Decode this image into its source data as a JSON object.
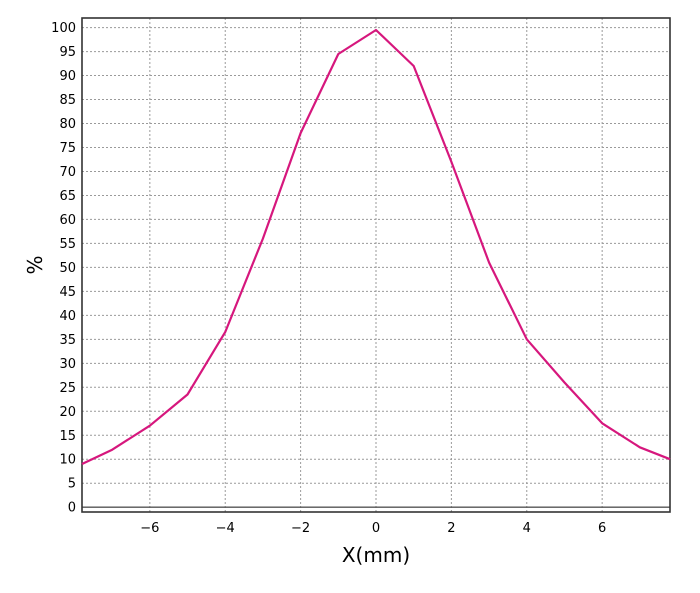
{
  "chart_data": {
    "type": "line",
    "title": "",
    "xlabel": "X(mm)",
    "ylabel": "%",
    "xlim": [
      -7.8,
      7.8
    ],
    "ylim": [
      -1,
      102
    ],
    "x_ticks": [
      -6,
      -4,
      -2,
      0,
      2,
      4,
      6
    ],
    "x_tick_labels": [
      "−6",
      "−4",
      "−2",
      "0",
      "2",
      "4",
      "6"
    ],
    "y_ticks": [
      0,
      5,
      10,
      15,
      20,
      25,
      30,
      35,
      40,
      45,
      50,
      55,
      60,
      65,
      70,
      75,
      80,
      85,
      90,
      95,
      100
    ],
    "x_gridlines": [
      -6,
      -4,
      -2,
      0,
      2,
      4,
      6
    ],
    "grid": true,
    "colors": {
      "series": "#d6177d"
    },
    "series": [
      {
        "x": [
          -7.8,
          -7,
          -6,
          -5,
          -4,
          -3,
          -2,
          -1,
          0,
          1,
          2,
          3,
          4,
          5,
          6,
          7,
          7.8
        ],
        "values": [
          9,
          12,
          17,
          23.5,
          36.5,
          56,
          78,
          94.5,
          99.5,
          92,
          72,
          51,
          35,
          26,
          17.5,
          12.5,
          10
        ]
      }
    ]
  }
}
